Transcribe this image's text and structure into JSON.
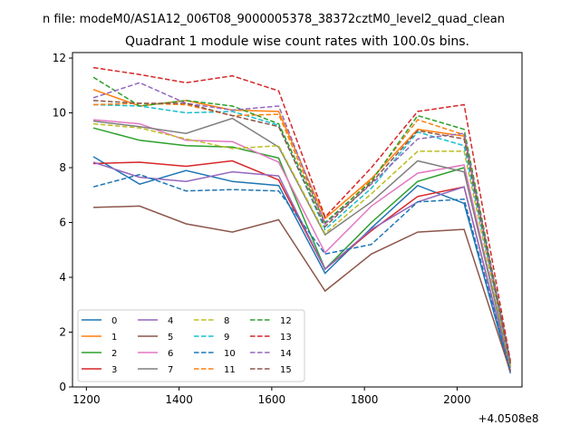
{
  "chart_data": {
    "type": "line",
    "title_top": "n file: modeM0/AS1A12_006T08_9000005378_38372cztM0_level2_quad_clean",
    "title": "Quadrant 1 module wise count rates with 100.0s bins.",
    "xlabel": "",
    "ylabel": "",
    "x_offset_label": "+4.0508e8",
    "xlim": [
      1170,
      2140
    ],
    "ylim": [
      0,
      12.2
    ],
    "xticks": [
      1200,
      1400,
      1600,
      1800,
      2000
    ],
    "yticks": [
      0,
      2,
      4,
      6,
      8,
      10,
      12
    ],
    "x": [
      1215,
      1315,
      1415,
      1515,
      1615,
      1715,
      1815,
      1915,
      2015,
      2115
    ],
    "legend_position": "lower-left",
    "series": [
      {
        "name": "0",
        "color": "#1f77b4",
        "dash": "solid",
        "values": [
          8.4,
          7.4,
          7.9,
          7.5,
          7.35,
          4.15,
          5.8,
          7.35,
          6.7,
          0.5
        ]
      },
      {
        "name": "1",
        "color": "#ff7f0e",
        "dash": "solid",
        "values": [
          10.85,
          10.25,
          10.45,
          10.1,
          10.05,
          6.15,
          7.6,
          9.4,
          9.15,
          0.8
        ]
      },
      {
        "name": "2",
        "color": "#2ca02c",
        "dash": "solid",
        "values": [
          9.45,
          9.0,
          8.8,
          8.75,
          8.35,
          4.3,
          6.0,
          7.5,
          8.0,
          0.7
        ]
      },
      {
        "name": "3",
        "color": "#d62728",
        "dash": "solid",
        "values": [
          8.15,
          8.2,
          8.05,
          8.25,
          7.55,
          4.3,
          5.7,
          6.95,
          7.3,
          0.6
        ]
      },
      {
        "name": "4",
        "color": "#9467bd",
        "dash": "solid",
        "values": [
          8.2,
          7.65,
          7.5,
          7.85,
          7.7,
          4.3,
          5.75,
          6.75,
          7.3,
          0.6
        ]
      },
      {
        "name": "5",
        "color": "#8c564b",
        "dash": "solid",
        "values": [
          6.55,
          6.6,
          5.95,
          5.65,
          6.1,
          3.5,
          4.85,
          5.65,
          5.75,
          0.55
        ]
      },
      {
        "name": "6",
        "color": "#e377c2",
        "dash": "solid",
        "values": [
          9.75,
          9.6,
          9.0,
          8.95,
          8.2,
          4.9,
          6.6,
          7.8,
          8.1,
          0.7
        ]
      },
      {
        "name": "7",
        "color": "#7f7f7f",
        "dash": "solid",
        "values": [
          9.7,
          9.5,
          9.25,
          9.8,
          8.75,
          5.55,
          6.75,
          8.25,
          7.85,
          0.75
        ]
      },
      {
        "name": "8",
        "color": "#bcbd22",
        "dash": "dashed",
        "values": [
          9.6,
          9.45,
          9.05,
          8.7,
          8.8,
          5.6,
          7.05,
          8.6,
          8.6,
          0.75
        ]
      },
      {
        "name": "9",
        "color": "#17becf",
        "dash": "dashed",
        "values": [
          10.3,
          10.25,
          10.0,
          10.05,
          9.55,
          5.75,
          7.25,
          9.3,
          8.8,
          0.85
        ]
      },
      {
        "name": "10",
        "color": "#1f77b4",
        "dash": "dashed",
        "values": [
          7.3,
          7.75,
          7.15,
          7.2,
          7.15,
          4.85,
          5.2,
          6.75,
          6.85,
          0.6
        ]
      },
      {
        "name": "11",
        "color": "#ff7f0e",
        "dash": "dashed",
        "values": [
          10.3,
          10.35,
          10.3,
          9.9,
          9.95,
          5.95,
          7.55,
          9.75,
          9.2,
          0.85
        ]
      },
      {
        "name": "12",
        "color": "#2ca02c",
        "dash": "dashed",
        "values": [
          11.3,
          10.25,
          10.45,
          10.25,
          9.6,
          6.0,
          7.5,
          9.9,
          9.4,
          0.9
        ]
      },
      {
        "name": "13",
        "color": "#d62728",
        "dash": "dashed",
        "values": [
          11.65,
          11.4,
          11.1,
          11.35,
          10.8,
          6.2,
          8.0,
          10.05,
          10.3,
          0.95
        ]
      },
      {
        "name": "14",
        "color": "#9467bd",
        "dash": "dashed",
        "values": [
          10.55,
          11.1,
          10.35,
          10.1,
          10.25,
          5.95,
          7.4,
          9.05,
          9.25,
          0.85
        ]
      },
      {
        "name": "15",
        "color": "#8c564b",
        "dash": "dashed",
        "values": [
          10.45,
          10.35,
          10.35,
          9.9,
          9.5,
          5.85,
          7.45,
          9.35,
          9.05,
          0.85
        ]
      }
    ]
  }
}
